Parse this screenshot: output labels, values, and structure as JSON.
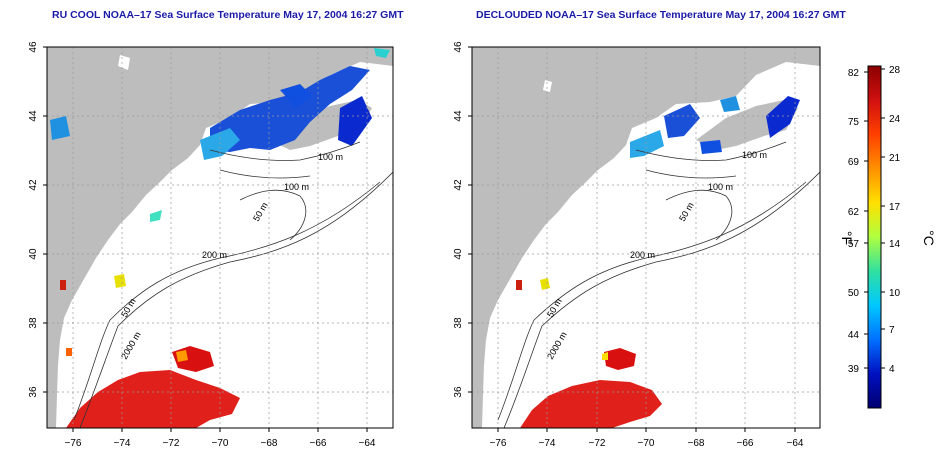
{
  "left_panel": {
    "title": "RU COOL NOAA–17 Sea Surface Temperature May 17, 2004 16:27 GMT"
  },
  "right_panel": {
    "title": "DECLOUDED NOAA–17 Sea Surface Temperature May 17, 2004 16:27 GMT"
  },
  "map": {
    "lon_ticks": [
      "−76",
      "−74",
      "−72",
      "−70",
      "−68",
      "−66",
      "−64"
    ],
    "lat_ticks": [
      "46",
      "44",
      "42",
      "40",
      "38",
      "36"
    ],
    "contour_labels": [
      "100 m",
      "100 m",
      "50 m",
      "200 m",
      "50 m",
      "2000 m"
    ]
  },
  "colorbar": {
    "unit_f": "°F",
    "unit_c": "°C",
    "f_ticks": [
      "82",
      "75",
      "69",
      "62",
      "57",
      "50",
      "44",
      "39"
    ],
    "c_ticks": [
      "28",
      "24",
      "21",
      "17",
      "14",
      "10",
      "7",
      "4"
    ],
    "colors": [
      "#8b0000",
      "#d01010",
      "#ff4000",
      "#ff9000",
      "#ffe000",
      "#b0ff40",
      "#30e0a0",
      "#00c8ff",
      "#0070ff",
      "#0010c0",
      "#000070"
    ]
  }
}
